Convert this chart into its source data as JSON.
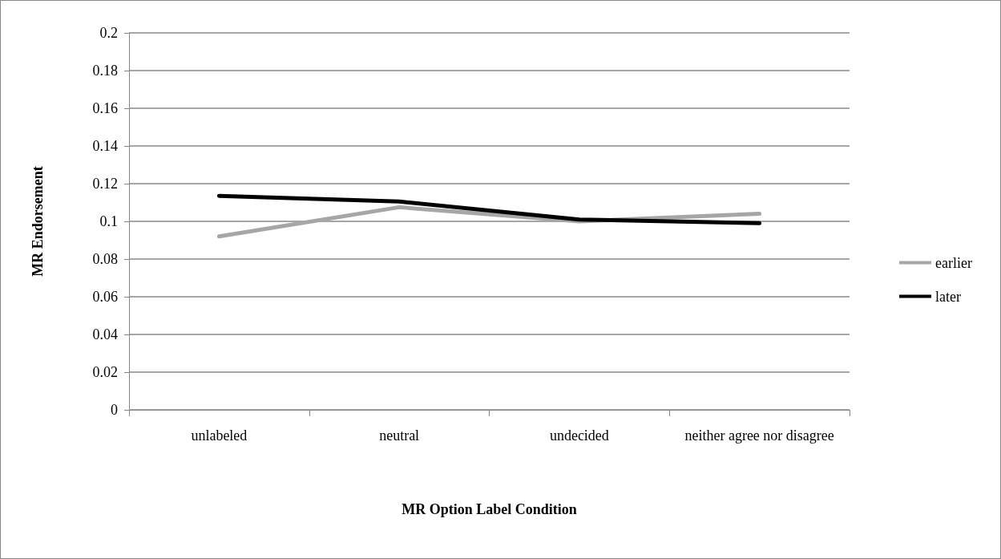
{
  "chart_data": {
    "type": "line",
    "xlabel": "MR Option Label Condition",
    "ylabel": "MR Endorsement",
    "categories": [
      "unlabeled",
      "neutral",
      "undecided",
      "neither agree nor disagree"
    ],
    "series": [
      {
        "name": "earlier",
        "color": "#a6a6a6",
        "values": [
          0.092,
          0.1075,
          0.1,
          0.104
        ]
      },
      {
        "name": "later",
        "color": "#000000",
        "values": [
          0.1135,
          0.1105,
          0.101,
          0.099
        ]
      }
    ],
    "ylim": [
      0,
      0.2
    ],
    "yticks": [
      0,
      0.02,
      0.04,
      0.06,
      0.08,
      0.1,
      0.12,
      0.14,
      0.16,
      0.18,
      0.2
    ],
    "grid": "y",
    "legend": "right",
    "marker": "none",
    "line_style": "solid"
  }
}
